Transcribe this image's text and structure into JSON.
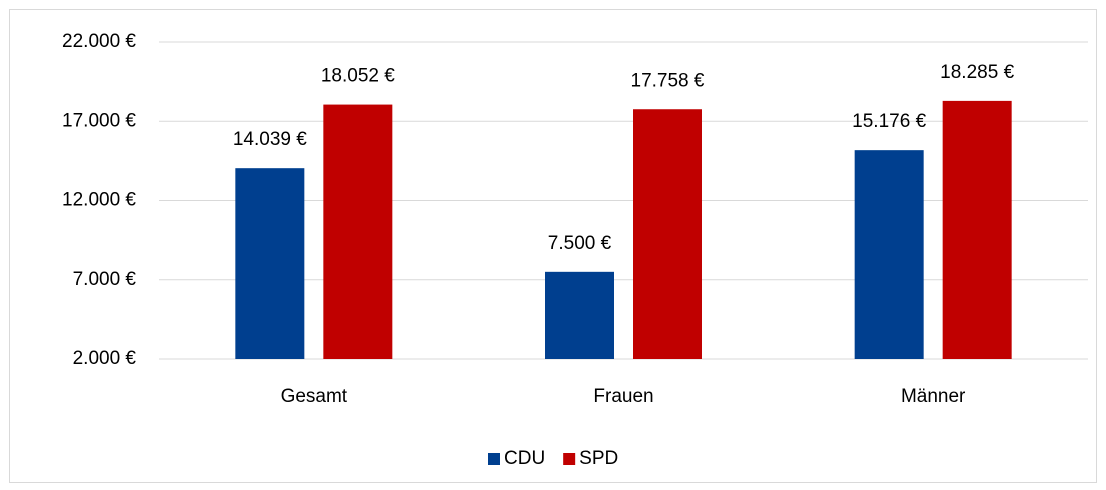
{
  "chart_data": {
    "type": "bar",
    "categories": [
      "Gesamt",
      "Frauen",
      "Männer"
    ],
    "series": [
      {
        "name": "CDU",
        "color": "#003f8f",
        "values": [
          14039,
          7500,
          15176
        ],
        "value_labels": [
          "14.039 €",
          "7.500 €",
          "15.176 €"
        ]
      },
      {
        "name": "SPD",
        "color": "#c00000",
        "values": [
          18052,
          17758,
          18285
        ],
        "value_labels": [
          "18.052 €",
          "17.758 €",
          "18.285 €"
        ]
      }
    ],
    "ylim": [
      2000,
      22000
    ],
    "yticks": [
      {
        "value": 2000,
        "label": "2.000 €"
      },
      {
        "value": 7000,
        "label": "7.000 €"
      },
      {
        "value": 12000,
        "label": "12.000 €"
      },
      {
        "value": 17000,
        "label": "17.000 €"
      },
      {
        "value": 22000,
        "label": "22.000 €"
      }
    ],
    "grid": true,
    "legend": "bottom"
  }
}
